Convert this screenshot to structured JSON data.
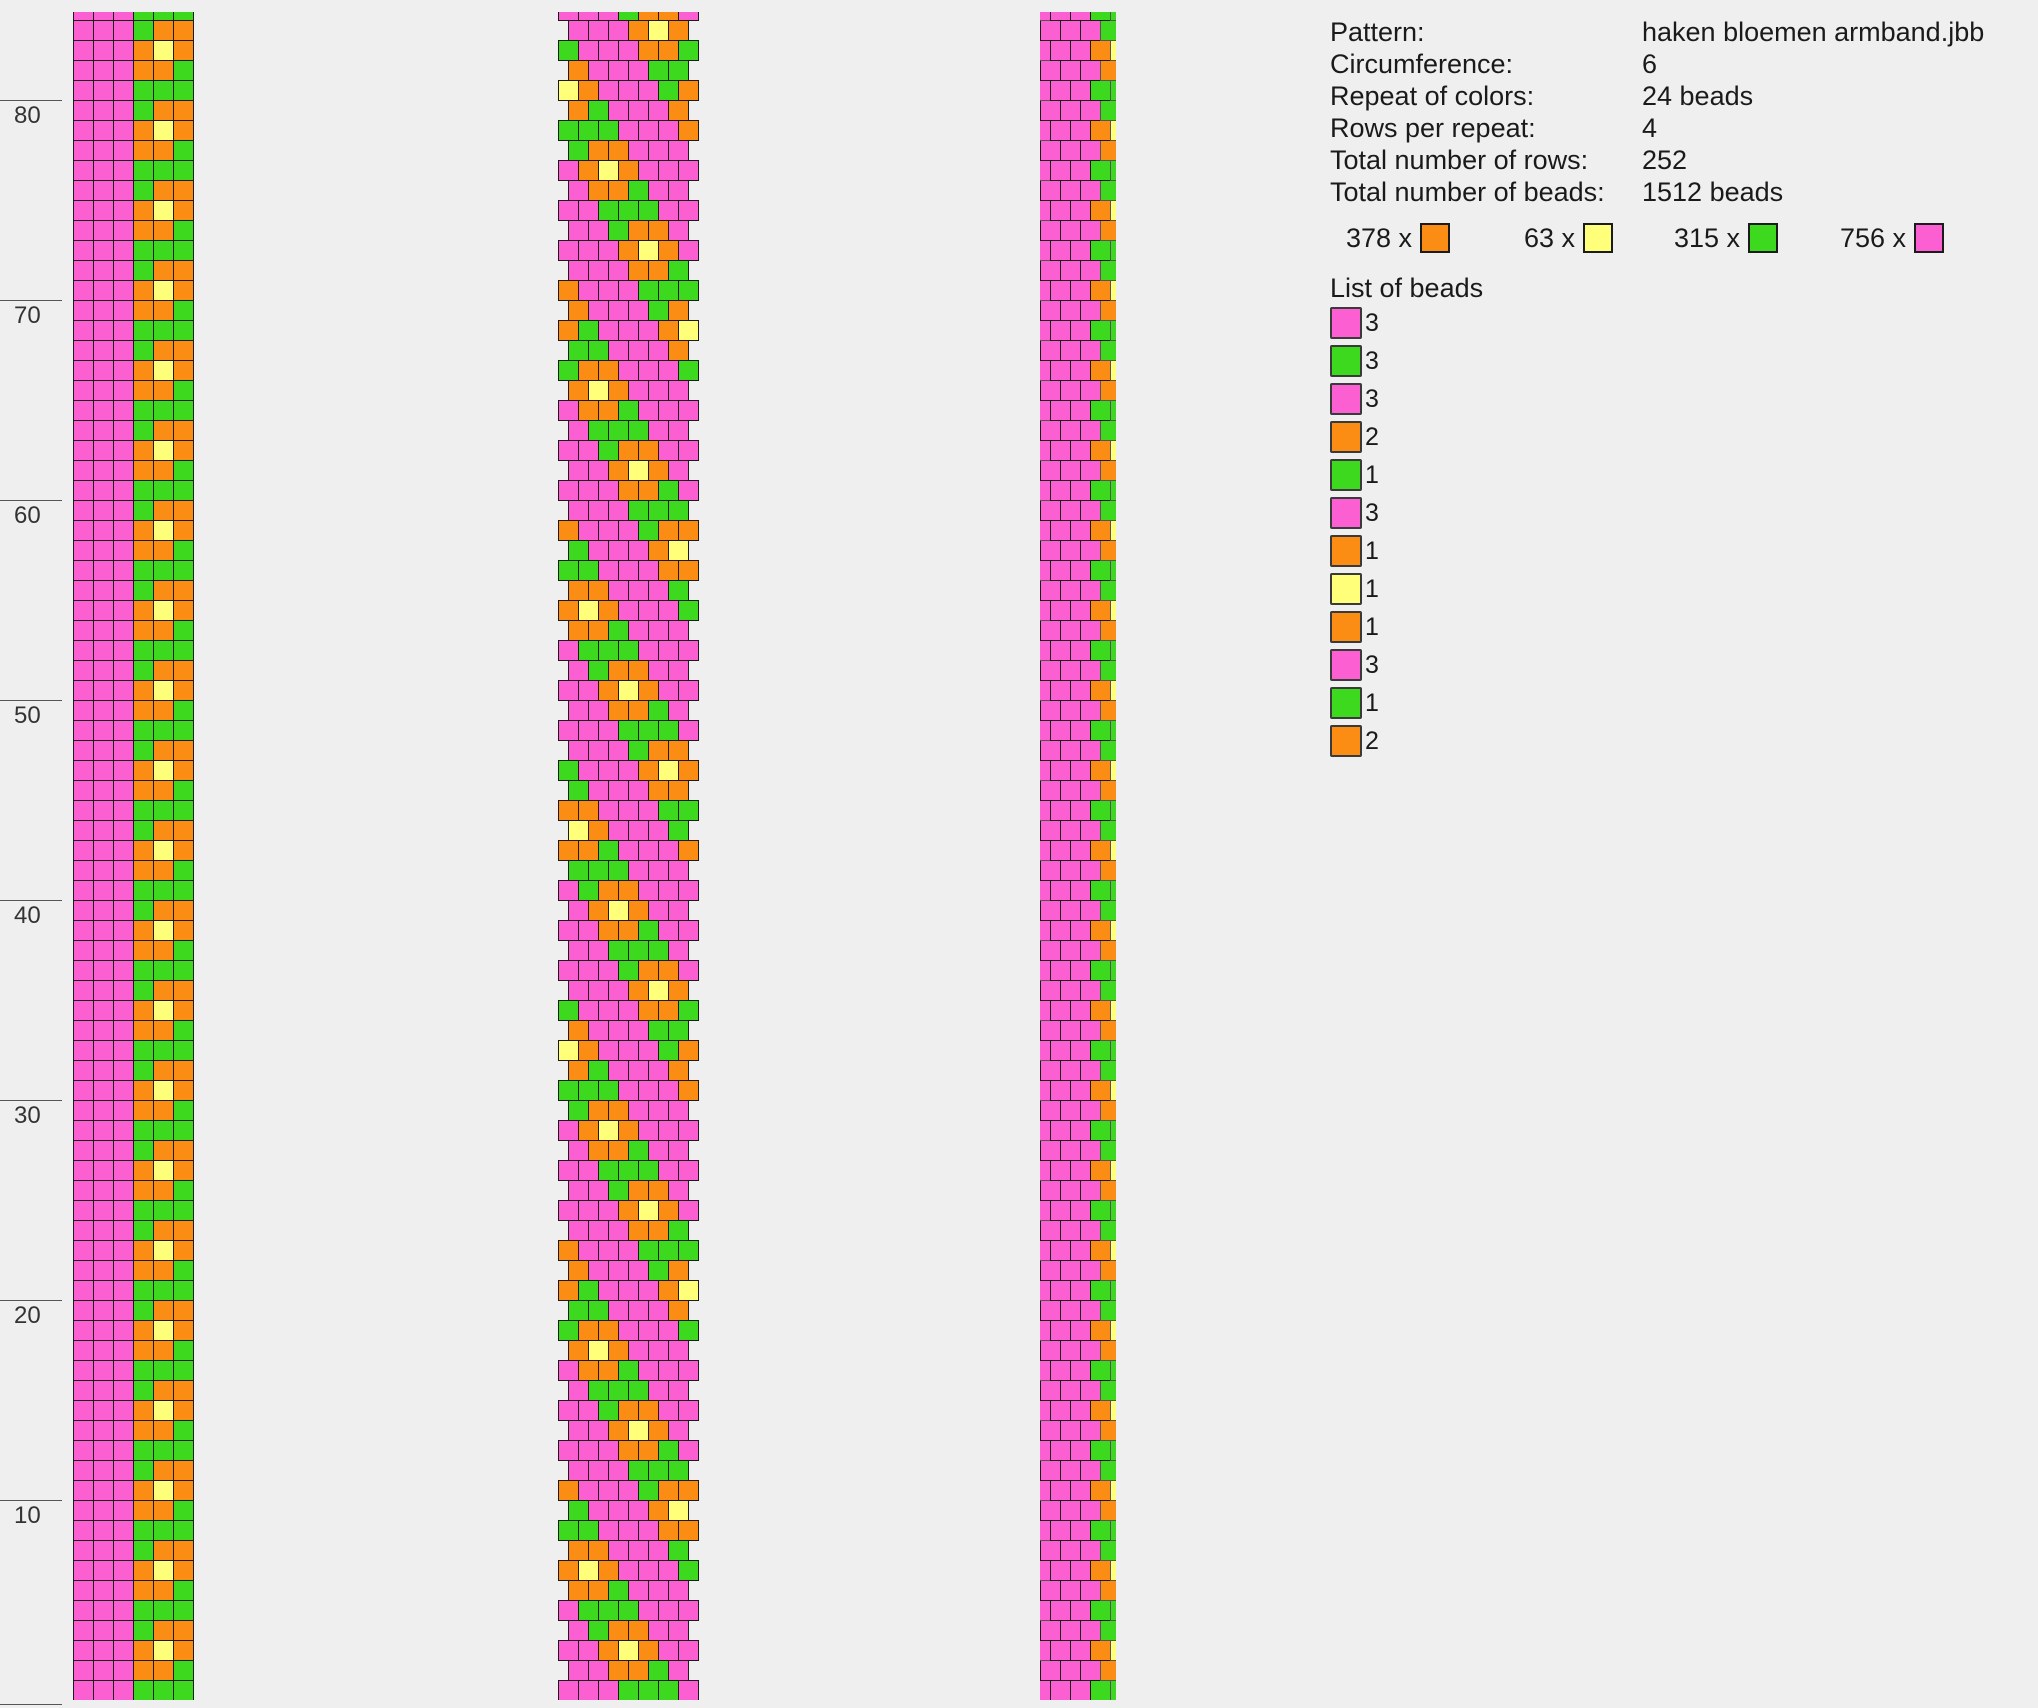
{
  "ruler": {
    "ticks": [
      "80",
      "70",
      "60",
      "50",
      "40",
      "30",
      "20",
      "10"
    ],
    "tick_rows": [
      80,
      70,
      60,
      50,
      40,
      30,
      20,
      10
    ]
  },
  "colors": {
    "orange": "#fb8c14",
    "yellow": "#ffff7a",
    "green": "#3cd91e",
    "pink": "#fb5fd2"
  },
  "info": {
    "pattern_label": "Pattern:",
    "pattern_value": "haken bloemen armband.jbb",
    "circumference_label": "Circumference:",
    "circumference_value": "6",
    "repeat_label": "Repeat of colors:",
    "repeat_value": "24 beads",
    "rows_per_repeat_label": "Rows per repeat:",
    "rows_per_repeat_value": "4",
    "total_rows_label": "Total number of rows:",
    "total_rows_value": "252",
    "total_beads_label": "Total number of beads:",
    "total_beads_value": "1512 beads"
  },
  "counts": [
    {
      "count": "378 x",
      "color": "orange"
    },
    {
      "count": "63 x",
      "color": "yellow"
    },
    {
      "count": "315 x",
      "color": "green"
    },
    {
      "count": "756 x",
      "color": "pink"
    }
  ],
  "list_title": "List of beads",
  "list": [
    {
      "n": "3",
      "color": "pink"
    },
    {
      "n": "3",
      "color": "green"
    },
    {
      "n": "3",
      "color": "pink"
    },
    {
      "n": "2",
      "color": "orange"
    },
    {
      "n": "1",
      "color": "green"
    },
    {
      "n": "3",
      "color": "pink"
    },
    {
      "n": "1",
      "color": "orange"
    },
    {
      "n": "1",
      "color": "yellow"
    },
    {
      "n": "1",
      "color": "orange"
    },
    {
      "n": "3",
      "color": "pink"
    },
    {
      "n": "1",
      "color": "green"
    },
    {
      "n": "2",
      "color": "orange"
    }
  ],
  "pattern": {
    "circumference": 6,
    "repeat": [
      "pink",
      "pink",
      "pink",
      "green",
      "green",
      "green",
      "pink",
      "pink",
      "pink",
      "orange",
      "orange",
      "green",
      "pink",
      "pink",
      "pink",
      "orange",
      "yellow",
      "orange",
      "pink",
      "pink",
      "pink",
      "green",
      "orange",
      "orange"
    ]
  }
}
